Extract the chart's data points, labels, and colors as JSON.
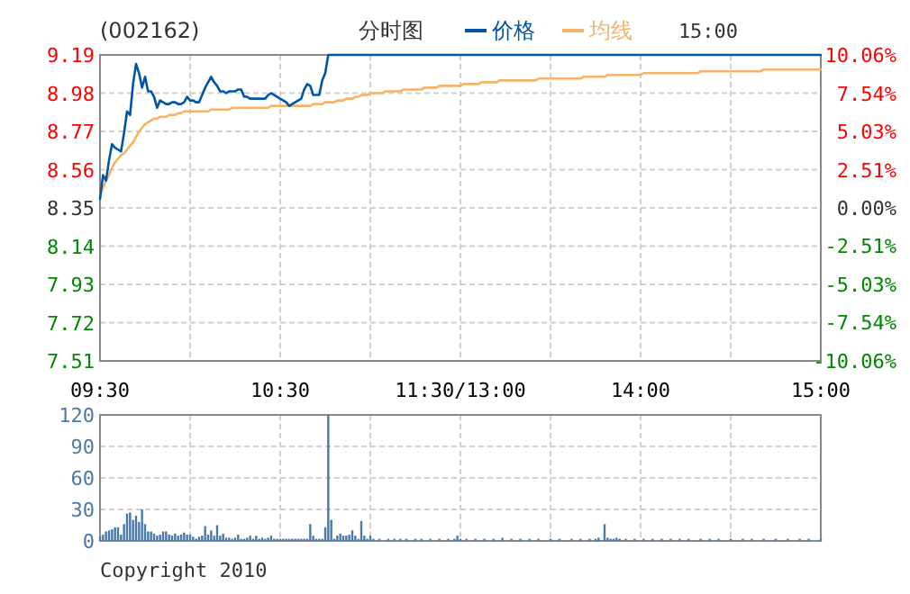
{
  "chart_data": [
    {
      "type": "line",
      "title": "分时图",
      "subtitle": "(002162)",
      "annotations": [
        "15:00"
      ],
      "categories": [
        "09:30",
        null,
        null,
        null,
        null,
        null,
        null,
        null,
        null,
        null,
        null,
        null,
        null,
        null,
        null,
        null,
        null,
        null,
        null,
        null,
        null,
        null,
        null,
        null,
        null,
        null,
        null,
        null,
        null,
        null,
        null,
        null,
        null,
        null,
        null,
        null,
        null,
        null,
        null,
        null,
        null,
        null,
        null,
        null,
        null,
        null,
        null,
        null,
        null,
        null,
        null,
        null,
        null,
        null,
        null,
        null,
        null,
        null,
        null,
        null,
        "10:30",
        null,
        null,
        null,
        null,
        null,
        null,
        null,
        null,
        null,
        null,
        null,
        null,
        null,
        null,
        null,
        null,
        null,
        null,
        null,
        null,
        null,
        null,
        null,
        null,
        null,
        null,
        null,
        null,
        null,
        null,
        null,
        null,
        null,
        null,
        null,
        null,
        null,
        null,
        null,
        null,
        null,
        null,
        null,
        null,
        null,
        null,
        null,
        null,
        null,
        null,
        null,
        null,
        null,
        null,
        null,
        null,
        null,
        null,
        null,
        "11:30/13:00",
        null,
        null,
        null,
        null,
        null,
        null,
        null,
        null,
        null,
        null,
        null,
        null,
        null,
        null,
        null,
        null,
        null,
        null,
        null,
        null,
        null,
        null,
        null,
        null,
        null,
        null,
        null,
        null,
        null,
        null,
        null,
        null,
        null,
        null,
        null,
        null,
        null,
        null,
        null,
        null,
        null,
        null,
        null,
        null,
        null,
        null,
        null,
        null,
        null,
        null,
        null,
        null,
        null,
        null,
        null,
        null,
        null,
        null,
        null,
        "14:00",
        null,
        null,
        null,
        null,
        null,
        null,
        null,
        null,
        null,
        null,
        null,
        null,
        null,
        null,
        null,
        null,
        null,
        null,
        null,
        null,
        null,
        null,
        null,
        null,
        null,
        null,
        null,
        null,
        null,
        null,
        null,
        null,
        null,
        null,
        null,
        null,
        null,
        null,
        null,
        null,
        null,
        null,
        null,
        null,
        null,
        null,
        null,
        null,
        null,
        null,
        null,
        null,
        null,
        null,
        null,
        null,
        null,
        null,
        null,
        "15:00"
      ],
      "ylim": [
        7.51,
        9.19
      ],
      "yticks": [
        7.51,
        7.72,
        7.93,
        8.14,
        8.35,
        8.56,
        8.77,
        8.98,
        9.19
      ],
      "y2lim": [
        -10.06,
        10.06
      ],
      "y2ticks": [
        {
          "value": -10.06,
          "label": "-10.06%"
        },
        {
          "value": -7.54,
          "label": "-7.54%"
        },
        {
          "value": -5.03,
          "label": "-5.03%"
        },
        {
          "value": -2.51,
          "label": "-2.51%"
        },
        {
          "value": 0,
          "label": "0.00%"
        },
        {
          "value": 2.51,
          "label": "2.51%"
        },
        {
          "value": 5.03,
          "label": "5.03%"
        },
        {
          "value": 7.54,
          "label": "7.54%"
        },
        {
          "value": 10.06,
          "label": "10.06%"
        }
      ],
      "grid": true,
      "legend": "top",
      "series": [
        {
          "name": "价格",
          "color": "#0055a5",
          "values": [
            8.4,
            8.53,
            8.5,
            8.61,
            8.7,
            8.68,
            8.67,
            8.66,
            8.76,
            8.88,
            8.86,
            9.03,
            9.14,
            9.09,
            9.01,
            9.07,
            8.99,
            8.99,
            8.96,
            8.9,
            8.94,
            8.93,
            8.92,
            8.92,
            8.93,
            8.93,
            8.92,
            8.92,
            8.93,
            8.96,
            8.94,
            8.94,
            8.93,
            8.93,
            8.97,
            9.01,
            9.04,
            9.07,
            9.04,
            9.02,
            8.99,
            8.99,
            8.98,
            8.99,
            8.99,
            8.99,
            9.0,
            9.0,
            8.96,
            8.96,
            8.95,
            8.95,
            8.95,
            8.95,
            8.95,
            8.95,
            8.97,
            8.98,
            8.97,
            8.96,
            8.95,
            8.94,
            8.93,
            8.91,
            8.92,
            8.93,
            8.94,
            8.95,
            9.0,
            9.03,
            9.02,
            8.97,
            8.97,
            8.97,
            9.05,
            9.09,
            9.19,
            9.19,
            9.19,
            9.19,
            9.19,
            9.19,
            9.19,
            9.19,
            9.19,
            9.19,
            9.19,
            9.19,
            9.19,
            9.19,
            9.19,
            9.19,
            9.19,
            9.19,
            9.19,
            9.19,
            9.19,
            9.19,
            9.19,
            9.19,
            9.19,
            9.19,
            9.19,
            9.19,
            9.19,
            9.19,
            9.19,
            9.19,
            9.19,
            9.19,
            9.19,
            9.19,
            9.19,
            9.19,
            9.19,
            9.19,
            9.19,
            9.19,
            9.19,
            9.19,
            9.19,
            9.19,
            9.19,
            9.19,
            9.19,
            9.19,
            9.19,
            9.19,
            9.19,
            9.19,
            9.19,
            9.19,
            9.19,
            9.19,
            9.19,
            9.19,
            9.19,
            9.19,
            9.19,
            9.19,
            9.19,
            9.19,
            9.19,
            9.19,
            9.19,
            9.19,
            9.19,
            9.19,
            9.19,
            9.19,
            9.19,
            9.19,
            9.19,
            9.19,
            9.19,
            9.19,
            9.19,
            9.19,
            9.19,
            9.19,
            9.19,
            9.19,
            9.19,
            9.19,
            9.19,
            9.19,
            9.19,
            9.19,
            9.19,
            9.19,
            9.19,
            9.19,
            9.19,
            9.19,
            9.19,
            9.19,
            9.19,
            9.19,
            9.19,
            9.19,
            9.19,
            9.19,
            9.19,
            9.19,
            9.19,
            9.19,
            9.19,
            9.19,
            9.19,
            9.19,
            9.19,
            9.19,
            9.19,
            9.19,
            9.19,
            9.19,
            9.19,
            9.19,
            9.19,
            9.19,
            9.19,
            9.19,
            9.19,
            9.19,
            9.19,
            9.19,
            9.19,
            9.19,
            9.19,
            9.19,
            9.19,
            9.19,
            9.19,
            9.19,
            9.19,
            9.19,
            9.19,
            9.19,
            9.19,
            9.19,
            9.19,
            9.19,
            9.19,
            9.19,
            9.19,
            9.19,
            9.19,
            9.19,
            9.19,
            9.19,
            9.19,
            9.19,
            9.19,
            9.19,
            9.19,
            9.19,
            9.19,
            9.19,
            9.19,
            9.19,
            9.19
          ]
        },
        {
          "name": "均线",
          "color": "#f5b26b",
          "values": [
            8.42,
            8.46,
            8.5,
            8.53,
            8.57,
            8.6,
            8.62,
            8.64,
            8.65,
            8.67,
            8.69,
            8.71,
            8.74,
            8.77,
            8.79,
            8.81,
            8.82,
            8.83,
            8.84,
            8.84,
            8.85,
            8.85,
            8.85,
            8.86,
            8.86,
            8.86,
            8.87,
            8.87,
            8.88,
            8.88,
            8.88,
            8.88,
            8.88,
            8.88,
            8.88,
            8.88,
            8.88,
            8.89,
            8.89,
            8.89,
            8.89,
            8.89,
            8.89,
            8.89,
            8.9,
            8.9,
            8.9,
            8.9,
            8.9,
            8.9,
            8.9,
            8.9,
            8.9,
            8.9,
            8.9,
            8.9,
            8.9,
            8.91,
            8.91,
            8.91,
            8.91,
            8.91,
            8.91,
            8.91,
            8.91,
            8.91,
            8.91,
            8.91,
            8.91,
            8.91,
            8.91,
            8.92,
            8.92,
            8.92,
            8.92,
            8.93,
            8.93,
            8.93,
            8.93,
            8.94,
            8.94,
            8.94,
            8.95,
            8.95,
            8.95,
            8.96,
            8.96,
            8.97,
            8.97,
            8.97,
            8.98,
            8.98,
            8.98,
            8.98,
            8.98,
            8.99,
            8.99,
            8.99,
            8.99,
            8.99,
            8.99,
            9.0,
            9.0,
            9.0,
            9.0,
            9.0,
            9.0,
            9.0,
            9.01,
            9.01,
            9.01,
            9.01,
            9.01,
            9.02,
            9.02,
            9.02,
            9.02,
            9.02,
            9.02,
            9.02,
            9.02,
            9.03,
            9.03,
            9.03,
            9.03,
            9.03,
            9.03,
            9.04,
            9.04,
            9.04,
            9.04,
            9.04,
            9.04,
            9.05,
            9.05,
            9.05,
            9.05,
            9.05,
            9.05,
            9.05,
            9.05,
            9.05,
            9.05,
            9.05,
            9.05,
            9.05,
            9.06,
            9.06,
            9.06,
            9.06,
            9.06,
            9.06,
            9.06,
            9.06,
            9.06,
            9.06,
            9.06,
            9.06,
            9.06,
            9.06,
            9.06,
            9.07,
            9.07,
            9.07,
            9.07,
            9.07,
            9.07,
            9.07,
            9.07,
            9.08,
            9.08,
            9.08,
            9.08,
            9.08,
            9.08,
            9.08,
            9.08,
            9.08,
            9.08,
            9.08,
            9.08,
            9.09,
            9.09,
            9.09,
            9.09,
            9.09,
            9.09,
            9.09,
            9.09,
            9.09,
            9.09,
            9.09,
            9.09,
            9.09,
            9.09,
            9.09,
            9.09,
            9.09,
            9.09,
            9.09,
            9.1,
            9.1,
            9.1,
            9.1,
            9.1,
            9.1,
            9.1,
            9.1,
            9.1,
            9.1,
            9.1,
            9.1,
            9.1,
            9.1,
            9.1,
            9.1,
            9.1,
            9.1,
            9.1,
            9.1,
            9.1,
            9.11,
            9.11,
            9.11,
            9.11,
            9.11,
            9.11,
            9.11,
            9.11,
            9.11,
            9.11,
            9.11,
            9.11,
            9.11,
            9.11,
            9.11,
            9.11,
            9.11,
            9.11,
            9.11,
            9.11
          ]
        }
      ]
    },
    {
      "type": "bar",
      "annotations": [
        "Copyright 2010"
      ],
      "categories": [
        null,
        null,
        null,
        null,
        null,
        null,
        null,
        null,
        null,
        null,
        null,
        null,
        null,
        null,
        null,
        null,
        null,
        null,
        null,
        null,
        null,
        null,
        null,
        null,
        null,
        null,
        null,
        null,
        null,
        null,
        null,
        null,
        null,
        null,
        null,
        null,
        null,
        null,
        null,
        null,
        null,
        null,
        null,
        null,
        null,
        null,
        null,
        null,
        null,
        null,
        null,
        null,
        null,
        null,
        null,
        null,
        null,
        null,
        null,
        null,
        null,
        null,
        null,
        null,
        null,
        null,
        null,
        null,
        null,
        null,
        null,
        null,
        null,
        null,
        null,
        null,
        null,
        null,
        null,
        null,
        null,
        null,
        null,
        null,
        null,
        null,
        null,
        null,
        null,
        null,
        null,
        null,
        null,
        null,
        null,
        null,
        null,
        null,
        null,
        null,
        null,
        null,
        null,
        null,
        null,
        null,
        null,
        null,
        null,
        null,
        null,
        null,
        null,
        null,
        null,
        null,
        null,
        null,
        null,
        null,
        null,
        null,
        null,
        null,
        null,
        null,
        null,
        null,
        null,
        null,
        null,
        null,
        null,
        null,
        null,
        null,
        null,
        null,
        null,
        null,
        null,
        null,
        null,
        null,
        null,
        null,
        null,
        null,
        null,
        null,
        null,
        null,
        null,
        null,
        null,
        null,
        null,
        null,
        null,
        null,
        null,
        null,
        null,
        null,
        null,
        null,
        null,
        null,
        null,
        null,
        null,
        null,
        null,
        null,
        null,
        null,
        null,
        null,
        null,
        null,
        null,
        null,
        null,
        null,
        null,
        null,
        null,
        null,
        null,
        null,
        null,
        null,
        null,
        null,
        null,
        null,
        null,
        null,
        null,
        null,
        null,
        null,
        null,
        null,
        null,
        null,
        null,
        null,
        null,
        null,
        null,
        null,
        null,
        null,
        null,
        null,
        null,
        null,
        null,
        null,
        null,
        null,
        null,
        null,
        null,
        null,
        null,
        null,
        null,
        null,
        null,
        null,
        null,
        null,
        null,
        null,
        null,
        null,
        null,
        null,
        null
      ],
      "ylim": [
        0,
        120
      ],
      "yticks": [
        0,
        30,
        60,
        90,
        120
      ],
      "grid": true,
      "series": [
        {
          "color": "#4a7aa8",
          "values": [
            4,
            6,
            9,
            10,
            11,
            13,
            13,
            6,
            16,
            26,
            27,
            20,
            24,
            18,
            30,
            16,
            9,
            9,
            7,
            5,
            6,
            9,
            9,
            6,
            5,
            7,
            5,
            6,
            8,
            6,
            6,
            4,
            2,
            4,
            5,
            14,
            6,
            10,
            5,
            15,
            5,
            7,
            3,
            3,
            2,
            3,
            6,
            2,
            2,
            3,
            5,
            2,
            5,
            2,
            3,
            2,
            3,
            5,
            2,
            2,
            2,
            2,
            2,
            2,
            2,
            2,
            2,
            2,
            2,
            2,
            16,
            5,
            2,
            2,
            2,
            13,
            120,
            20,
            2,
            5,
            7,
            5,
            5,
            6,
            10,
            5,
            2,
            19,
            5,
            2,
            5,
            2,
            null,
            2,
            null,
            null,
            2,
            null,
            2,
            null,
            2,
            null,
            2,
            null,
            null,
            2,
            null,
            2,
            null,
            null,
            2,
            null,
            null,
            2,
            null,
            null,
            2,
            null,
            2,
            5,
            2,
            null,
            2,
            null,
            null,
            2,
            null,
            null,
            2,
            null,
            null,
            2,
            null,
            null,
            3,
            null,
            null,
            2,
            null,
            null,
            2,
            null,
            null,
            2,
            null,
            null,
            2,
            null,
            null,
            null,
            2,
            null,
            null,
            2,
            null,
            null,
            null,
            2,
            null,
            null,
            2,
            null,
            null,
            2,
            null,
            2,
            3,
            null,
            16,
            3,
            2,
            2,
            3,
            2,
            null,
            2,
            null,
            null,
            2,
            null,
            null,
            2,
            null,
            null,
            2,
            null,
            null,
            2,
            null,
            null,
            2,
            null,
            null,
            2,
            null,
            null,
            2,
            null,
            null,
            null,
            2,
            null,
            null,
            2,
            null,
            null,
            2,
            null,
            null,
            null,
            2,
            null,
            null,
            null,
            2,
            null,
            null,
            2,
            null,
            null,
            null,
            2,
            null,
            null,
            null,
            2,
            null,
            null,
            null,
            2,
            null,
            null,
            null,
            2,
            null,
            null,
            2,
            null,
            null,
            null,
            2
          ]
        }
      ]
    }
  ]
}
